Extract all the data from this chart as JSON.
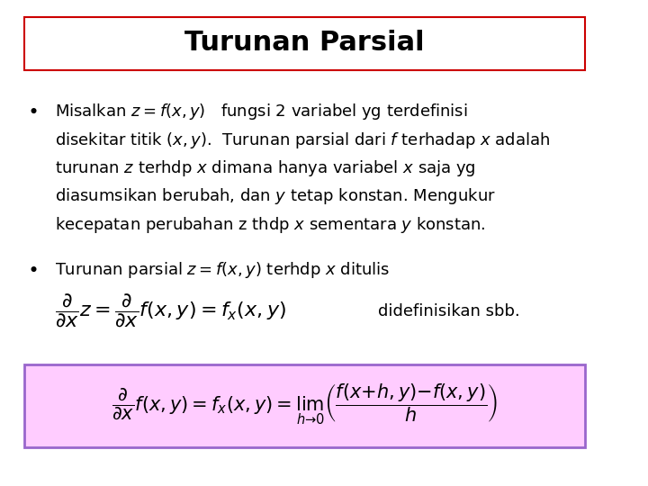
{
  "title": "Turunan Parsial",
  "title_fontsize": 22,
  "title_box_color": "#cc0000",
  "bg_color": "#ffffff",
  "text_color": "#000000",
  "bullet1_lines": [
    "Misalkan $z = f(x,y)$   fungsi 2 variabel yg terdefinisi",
    "disekitar titik $(x,y)$.  Turunan parsial dari $f$ terhadap $x$ adalah",
    "turunan $z$ terhdp $x$ dimana hanya variabel $x$ saja yg",
    "diasumsikan berubah, dan $y$ tetap konstan. Mengukur",
    "kecepatan perubahan z thdp $x$ sementara $y$ konstan."
  ],
  "bullet2_line": "Turunan parsial $z = f(x,y)$ terhdp $x$ ditulis",
  "formula1": "$\\dfrac{\\partial}{\\partial x}z = \\dfrac{\\partial}{\\partial x}f(x, y) = f_x(x, y)$",
  "formula1_suffix": "didefinisikan sbb.",
  "formula2": "$\\dfrac{\\partial}{\\partial x}f(x, y) = f_x(x, y) = \\lim_{h \\to 0}\\left(\\dfrac{f(x+h, y) - f(x, y)}{h}\\right)$",
  "formula2_box_color": "#ffccff",
  "formula2_border_color": "#9966cc",
  "body_fontsize": 13,
  "formula_fontsize": 14
}
